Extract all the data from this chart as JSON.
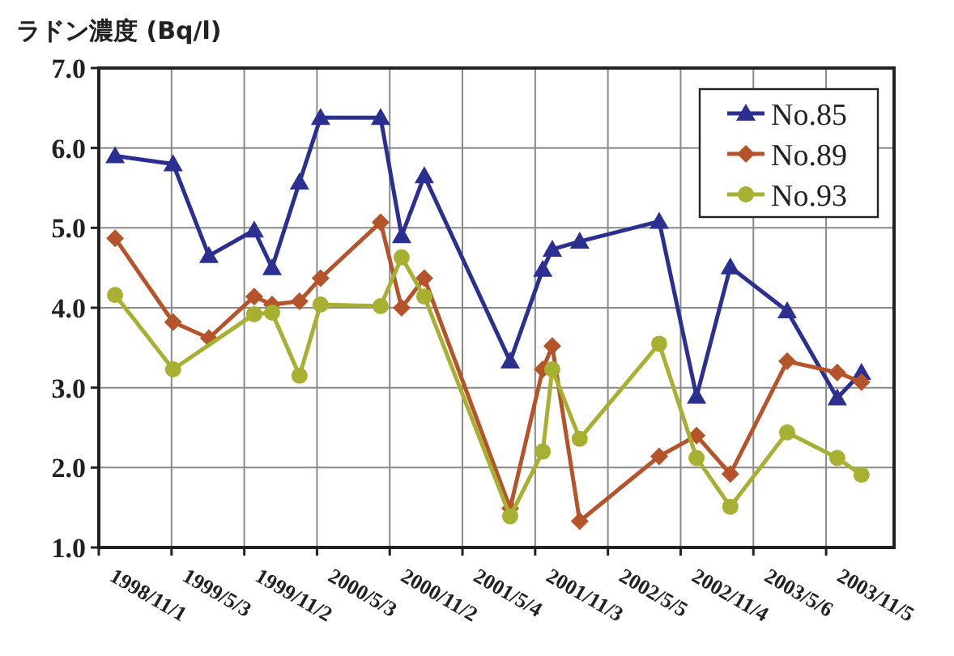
{
  "chart_data": {
    "type": "line",
    "ylabel": "ラドン濃度 (Bq/l)",
    "x": [
      "1998-12-12",
      "1999-05-07",
      "1999-08-05",
      "1999-11-27",
      "2000-01-11",
      "2000-03-20",
      "2000-05-12",
      "2000-10-10",
      "2000-12-02",
      "2001-01-28",
      "2001-09-01",
      "2001-11-22",
      "2001-12-16",
      "2002-02-23",
      "2002-09-11",
      "2002-12-14",
      "2003-03-09",
      "2003-07-30",
      "2003-12-03",
      "2004-02-02"
    ],
    "series": [
      {
        "name": "No.85",
        "color": "#2b3090",
        "marker": "triangle",
        "values": [
          5.9,
          5.8,
          4.65,
          4.97,
          4.5,
          5.57,
          6.38,
          6.38,
          4.9,
          5.65,
          3.33,
          4.48,
          4.73,
          4.83,
          5.08,
          2.89,
          4.51,
          3.96,
          2.87,
          3.19
        ]
      },
      {
        "name": "No.89",
        "color": "#b5532a",
        "marker": "diamond",
        "values": [
          4.87,
          3.82,
          3.62,
          4.14,
          4.04,
          4.08,
          4.37,
          5.07,
          4.0,
          4.37,
          1.49,
          3.23,
          3.52,
          1.33,
          2.14,
          2.4,
          1.92,
          3.33,
          3.19,
          3.07
        ]
      },
      {
        "name": "No.93",
        "color": "#a8b032",
        "marker": "circle",
        "x": [
          "1998-12-12",
          "1999-05-07",
          "1999-11-27",
          "2000-01-11",
          "2000-03-20",
          "2000-05-12",
          "2000-10-10",
          "2000-12-02",
          "2001-01-28",
          "2001-09-01",
          "2001-11-22",
          "2001-12-16",
          "2002-02-23",
          "2002-09-11",
          "2002-12-14",
          "2003-03-09",
          "2003-07-30",
          "2003-12-03",
          "2004-02-02"
        ],
        "values": [
          4.16,
          3.23,
          3.92,
          3.94,
          3.15,
          4.04,
          4.02,
          4.63,
          4.14,
          1.39,
          2.2,
          3.23,
          2.36,
          3.55,
          2.12,
          1.51,
          2.44,
          2.12,
          1.91
        ]
      }
    ],
    "xlim": [
      "1998-11-01",
      "2004-04-24"
    ],
    "xticks": [
      {
        "value": "1998-11-01",
        "label": "1998/11/1"
      },
      {
        "value": "1999-05-03",
        "label": "1999/5/3"
      },
      {
        "value": "1999-11-02",
        "label": "1999/11/2"
      },
      {
        "value": "2000-05-03",
        "label": "2000/5/3"
      },
      {
        "value": "2000-11-02",
        "label": "2000/11/2"
      },
      {
        "value": "2001-05-04",
        "label": "2001/5/4"
      },
      {
        "value": "2001-11-03",
        "label": "2001/11/3"
      },
      {
        "value": "2002-05-05",
        "label": "2002/5/5"
      },
      {
        "value": "2002-11-04",
        "label": "2002/11/4"
      },
      {
        "value": "2003-05-06",
        "label": "2003/5/6"
      },
      {
        "value": "2003-11-05",
        "label": "2003/11/5"
      }
    ],
    "ylim": [
      1,
      7
    ],
    "yticks": [
      {
        "value": 1,
        "label": "1.0"
      },
      {
        "value": 2,
        "label": "2.0"
      },
      {
        "value": 3,
        "label": "3.0"
      },
      {
        "value": 4,
        "label": "4.0"
      },
      {
        "value": 5,
        "label": "5.0"
      },
      {
        "value": 6,
        "label": "6.0"
      },
      {
        "value": 7,
        "label": "7.0"
      }
    ],
    "grid": true,
    "legend": "top right",
    "line_style": "solid"
  }
}
